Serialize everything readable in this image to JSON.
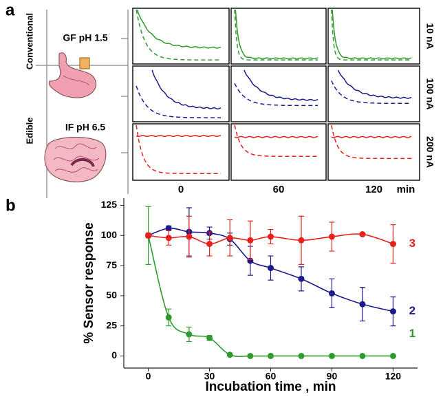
{
  "panel_a": {
    "panel_label": "a",
    "groups": [
      "Conventional",
      "Edible"
    ],
    "media": [
      "GF pH 1.5",
      "IF pH 6.5"
    ],
    "scales": [
      "10 nA",
      "100 nA",
      "200 nA"
    ],
    "times": [
      0,
      60,
      120
    ],
    "time_unit": "min",
    "colors": [
      "#2e9a2e",
      "#1a1a8c",
      "#e8201c"
    ]
  },
  "chart_data": {
    "type": "line",
    "panel_label": "b",
    "xlabel": "Incubation time , min",
    "ylabel": "% Sensor response",
    "x": [
      0,
      10,
      20,
      30,
      40,
      50,
      60,
      75,
      90,
      105,
      120
    ],
    "xlim": [
      -12,
      132
    ],
    "xticks": [
      0,
      30,
      60,
      90,
      120
    ],
    "ylim": [
      -10,
      131
    ],
    "yticks": [
      0,
      25,
      50,
      75,
      100,
      125
    ],
    "series": [
      {
        "name": "1",
        "color": "#2e9a2e",
        "values": [
          100,
          32,
          18,
          15,
          1,
          0,
          0,
          0,
          0,
          0,
          0
        ],
        "errors": [
          24,
          7,
          6,
          2,
          0,
          0,
          0,
          0,
          0,
          0,
          0
        ]
      },
      {
        "name": "2",
        "color": "#1a1a8c",
        "values": [
          100,
          106,
          103,
          102,
          97,
          79,
          73,
          64,
          52,
          43,
          37
        ],
        "errors": [
          0,
          2,
          20,
          5,
          5,
          12,
          10,
          10,
          12,
          14,
          12
        ]
      },
      {
        "name": "3",
        "color": "#e8201c",
        "values": [
          100,
          98,
          99,
          93,
          98,
          96,
          99,
          96,
          99,
          101,
          93
        ],
        "errors": [
          2,
          6,
          17,
          10,
          15,
          16,
          6,
          20,
          12,
          0,
          16
        ]
      }
    ]
  }
}
